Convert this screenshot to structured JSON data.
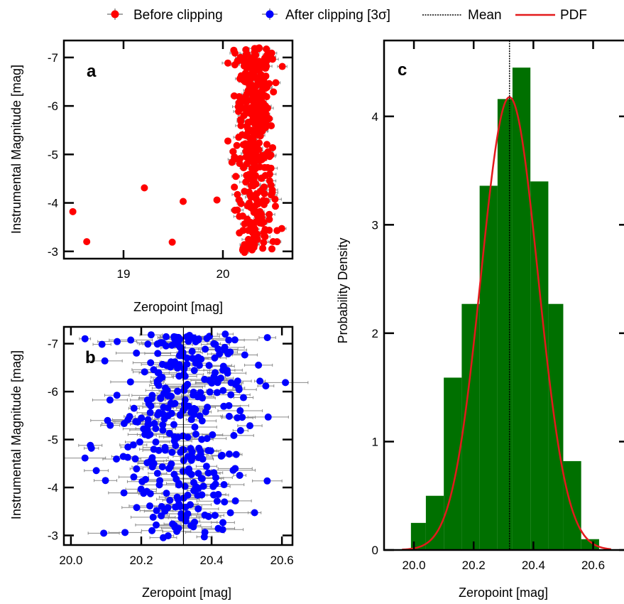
{
  "legend": {
    "entries": [
      {
        "label": "Before clipping",
        "marker": "dot-errbar",
        "color": "#ff0000"
      },
      {
        "label": "After clipping [3σ]",
        "marker": "dot-errbar",
        "color": "#0000ff"
      },
      {
        "label": "Mean",
        "marker": "dotted-line",
        "color": "#000000"
      },
      {
        "label": "PDF",
        "marker": "line",
        "color": "#e31a1c"
      }
    ]
  },
  "chart_data": [
    {
      "type": "scatter",
      "panel_label": "a",
      "xlabel": "Zeropoint [mag]",
      "ylabel": "Instrumental Magnitude [mag]",
      "xlim": [
        18.4,
        20.7
      ],
      "ylim": [
        -2.85,
        -7.35
      ],
      "y_inverted": true,
      "xticks": [
        19,
        20
      ],
      "yticks": [
        -3,
        -4,
        -5,
        -6,
        -7
      ],
      "series": [
        {
          "name": "Before clipping",
          "color": "#ff0000",
          "outliers": [
            {
              "x": 18.49,
              "y": -3.82
            },
            {
              "x": 18.63,
              "y": -3.2
            },
            {
              "x": 19.21,
              "y": -4.31
            },
            {
              "x": 19.49,
              "y": -3.19
            },
            {
              "x": 19.6,
              "y": -4.03
            },
            {
              "x": 19.94,
              "y": -4.06
            }
          ],
          "cluster": {
            "x_mean": 20.32,
            "x_sd": 0.1,
            "x_range": [
              20.05,
              20.6
            ],
            "y_range": [
              -2.95,
              -7.2
            ],
            "n": 360
          },
          "xerr_typical": 0.03
        }
      ]
    },
    {
      "type": "scatter",
      "panel_label": "b",
      "xlabel": "Zeropoint [mag]",
      "ylabel": "Instrumental Magnitude [mag]",
      "xlim": [
        19.98,
        20.63
      ],
      "ylim": [
        -2.8,
        -7.35
      ],
      "y_inverted": true,
      "xticks": [
        "20.0",
        "20.2",
        "20.4",
        "20.6"
      ],
      "yticks": [
        -3,
        -4,
        -5,
        -6,
        -7
      ],
      "series": [
        {
          "name": "After clipping [3σ]",
          "color": "#0000ff",
          "cluster": {
            "x_mean": 20.32,
            "x_sd": 0.1,
            "x_range": [
              20.04,
              20.61
            ],
            "y_range": [
              -2.95,
              -7.2
            ],
            "n": 360
          },
          "xerr_typical": 0.035
        }
      ],
      "mean_line_x": 20.32
    },
    {
      "type": "bar",
      "panel_label": "c",
      "xlabel": "Zeropoint [mag]",
      "ylabel": "Probability Density",
      "xlim": [
        19.9,
        20.72
      ],
      "ylim": [
        0,
        4.7
      ],
      "xticks": [
        "20.0",
        "20.2",
        "20.4",
        "20.6"
      ],
      "yticks": [
        0,
        1,
        2,
        3,
        4
      ],
      "bar_color": "#007000",
      "bins": [
        {
          "x0": 19.99,
          "x1": 20.04,
          "density": 0.25
        },
        {
          "x0": 20.04,
          "x1": 20.1,
          "density": 0.5
        },
        {
          "x0": 20.1,
          "x1": 20.16,
          "density": 1.59
        },
        {
          "x0": 20.16,
          "x1": 20.22,
          "density": 2.27
        },
        {
          "x0": 20.22,
          "x1": 20.28,
          "density": 3.36
        },
        {
          "x0": 20.28,
          "x1": 20.33,
          "density": 4.16
        },
        {
          "x0": 20.33,
          "x1": 20.39,
          "density": 4.45
        },
        {
          "x0": 20.39,
          "x1": 20.45,
          "density": 3.4
        },
        {
          "x0": 20.45,
          "x1": 20.5,
          "density": 2.27
        },
        {
          "x0": 20.5,
          "x1": 20.56,
          "density": 0.82
        },
        {
          "x0": 20.56,
          "x1": 20.62,
          "density": 0.1
        }
      ],
      "pdf": {
        "name": "PDF",
        "color": "#e31a1c",
        "mean": 20.32,
        "sd": 0.0955
      },
      "mean_line": {
        "name": "Mean",
        "x": 20.32,
        "color": "#000000"
      }
    }
  ]
}
